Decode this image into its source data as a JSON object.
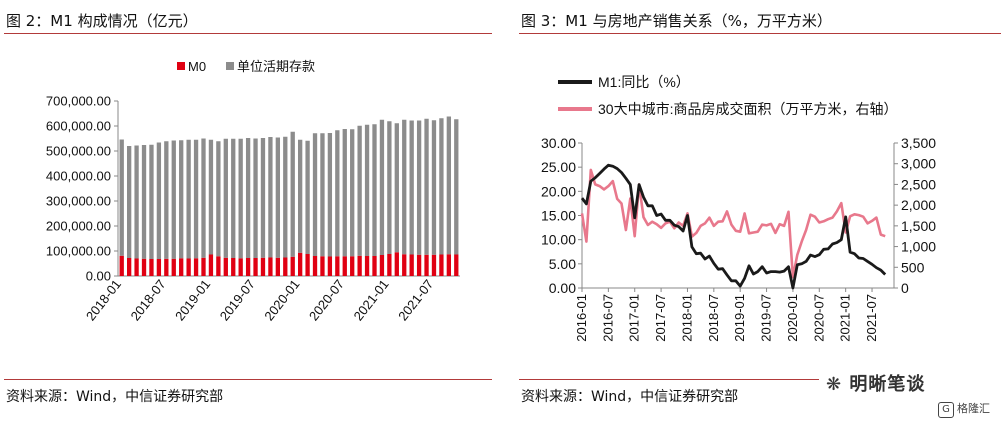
{
  "left_panel": {
    "title": "图 2：M1 构成情况（亿元）",
    "source": "资料来源：Wind，中信证券研究部"
  },
  "right_panel": {
    "title": "图 3：M1 与房地产销售关系（%，万平方米）",
    "source": "资料来源：Wind，中信证券研究部"
  },
  "watermark": {
    "text": "明晰笔谈",
    "badge": "格隆汇"
  },
  "colors": {
    "m0": "#e00012",
    "deposit": "#8c8c8c",
    "m1": "#1a1a1a",
    "area": "#e8788c",
    "rule": "#b23a3a"
  },
  "chart_data": [
    {
      "type": "bar",
      "stacked": true,
      "legend_position": "top",
      "categories": [
        "2018-01",
        "2018-02",
        "2018-03",
        "2018-04",
        "2018-05",
        "2018-06",
        "2018-07",
        "2018-08",
        "2018-09",
        "2018-10",
        "2018-11",
        "2018-12",
        "2019-01",
        "2019-02",
        "2019-03",
        "2019-04",
        "2019-05",
        "2019-06",
        "2019-07",
        "2019-08",
        "2019-09",
        "2019-10",
        "2019-11",
        "2019-12",
        "2020-01",
        "2020-02",
        "2020-03",
        "2020-04",
        "2020-05",
        "2020-06",
        "2020-07",
        "2020-08",
        "2020-09",
        "2020-10",
        "2020-11",
        "2020-12",
        "2021-01",
        "2021-02",
        "2021-03",
        "2021-04",
        "2021-05",
        "2021-06",
        "2021-07",
        "2021-08",
        "2021-09",
        "2021-10"
      ],
      "x_tick_labels": [
        "2018-01",
        "2018-07",
        "2019-01",
        "2019-07",
        "2020-01",
        "2020-07",
        "2021-01",
        "2021-07"
      ],
      "series": [
        {
          "name": "M0",
          "values": [
            81000,
            72000,
            70000,
            69000,
            68000,
            68000,
            69000,
            69000,
            71000,
            70000,
            71000,
            73000,
            86000,
            79000,
            73000,
            72000,
            71000,
            72000,
            72000,
            73000,
            74000,
            73000,
            74000,
            77000,
            93000,
            88000,
            80000,
            79000,
            78000,
            79000,
            79000,
            79000,
            81000,
            80000,
            80000,
            84000,
            88000,
            95000,
            87000,
            86000,
            85000,
            85000,
            85000,
            86000,
            87000,
            86000
          ]
        },
        {
          "name": "单位活期存款",
          "values": [
            465000,
            448000,
            452000,
            455000,
            457000,
            466000,
            470000,
            473000,
            472000,
            475000,
            474000,
            477000,
            459000,
            460000,
            476000,
            477000,
            478000,
            480000,
            478000,
            479000,
            482000,
            481000,
            483000,
            500000,
            452000,
            453000,
            491000,
            492000,
            494000,
            504000,
            509000,
            508000,
            520000,
            525000,
            527000,
            541000,
            531000,
            516000,
            538000,
            536000,
            537000,
            544000,
            538000,
            545000,
            551000,
            541000
          ]
        }
      ],
      "ylim": [
        0,
        700000
      ],
      "y_ticks": [
        "0.00",
        "100,000.00",
        "200,000.00",
        "300,000.00",
        "400,000.00",
        "500,000.00",
        "600,000.00",
        "700,000.00"
      ]
    },
    {
      "type": "line",
      "dual_axis": true,
      "legend_position": "top-left",
      "x_tick_labels": [
        "2016-01",
        "2016-07",
        "2017-01",
        "2017-07",
        "2018-01",
        "2018-07",
        "2019-01",
        "2019-07",
        "2020-01",
        "2020-07",
        "2021-01",
        "2021-07"
      ],
      "x_start": "2016-01",
      "series": [
        {
          "name": "M1:同比（%）",
          "axis": "left",
          "values": [
            18.6,
            17.4,
            22.1,
            22.8,
            23.7,
            24.6,
            25.4,
            25.2,
            24.7,
            23.9,
            22.7,
            21.4,
            14.5,
            21.4,
            18.8,
            17.0,
            17.0,
            15.0,
            15.3,
            14.0,
            14.0,
            13.0,
            12.7,
            11.8,
            15.0,
            8.5,
            7.1,
            7.2,
            6.0,
            6.6,
            5.1,
            3.9,
            4.0,
            2.7,
            1.5,
            1.5,
            0.4,
            2.0,
            4.6,
            2.9,
            3.4,
            4.4,
            3.1,
            3.4,
            3.4,
            3.3,
            3.5,
            4.4,
            0.0,
            4.8,
            5.0,
            5.5,
            6.8,
            6.5,
            6.9,
            8.0,
            8.1,
            9.1,
            9.4,
            10.0,
            14.7,
            7.4,
            7.1,
            6.2,
            6.1,
            5.5,
            4.9,
            4.2,
            3.7,
            2.8
          ]
        },
        {
          "name": "30大中城市:商品房成交面积（万平方米，右轴）",
          "axis": "right",
          "values": [
            1800,
            1120,
            2850,
            2500,
            2460,
            2380,
            2460,
            2580,
            2150,
            2040,
            1400,
            2160,
            1250,
            2500,
            1710,
            1520,
            1600,
            1540,
            1450,
            1560,
            1600,
            1440,
            1580,
            1500,
            1800,
            1240,
            1330,
            1500,
            1560,
            1700,
            1500,
            1600,
            1610,
            1850,
            1530,
            1380,
            1360,
            1800,
            1320,
            1340,
            1360,
            1530,
            1510,
            1550,
            1330,
            1540,
            1500,
            1840,
            260,
            800,
            1120,
            1400,
            1770,
            1720,
            1580,
            1610,
            1660,
            1700,
            1850,
            2050,
            1340,
            1730,
            1780,
            1760,
            1720,
            1560,
            1620,
            1700,
            1290,
            1250
          ]
        }
      ],
      "ylim_left": [
        0,
        30
      ],
      "ylim_right": [
        0,
        3500
      ],
      "y_ticks_left": [
        "0.00",
        "5.00",
        "10.00",
        "15.00",
        "20.00",
        "25.00",
        "30.00"
      ],
      "y_ticks_right": [
        "0",
        "500",
        "1,000",
        "1,500",
        "2,000",
        "2,500",
        "3,000",
        "3,500"
      ]
    }
  ]
}
